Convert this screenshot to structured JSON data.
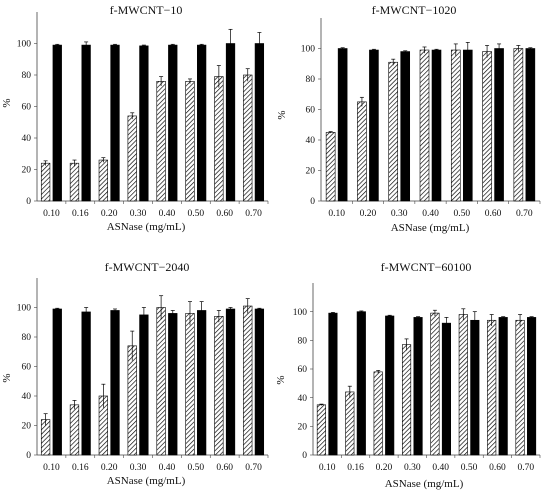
{
  "figure": {
    "colors": {
      "solid_series": "#000000",
      "hatched_series": "hatched"
    }
  },
  "chart_data": [
    {
      "type": "bar",
      "title": "f-MWCNT−10",
      "xlabel": "ASNase (mg/mL)",
      "ylabel": "%",
      "ylim": [
        0,
        120
      ],
      "yticks": [
        "0",
        "20",
        "40",
        "60",
        "80",
        "100"
      ],
      "categories": [
        "0.10",
        "0.16",
        "0.20",
        "0.30",
        "0.40",
        "0.50",
        "0.60",
        "0.70"
      ],
      "grid": false,
      "series": [
        {
          "style": "hatched",
          "values": [
            24,
            24,
            26,
            54,
            76,
            76,
            79,
            80
          ],
          "errors": [
            1.5,
            2,
            1.5,
            2,
            3,
            1.5,
            7,
            4
          ]
        },
        {
          "style": "solid",
          "values": [
            99,
            99,
            99,
            98.5,
            99,
            99,
            100,
            100
          ],
          "errors": [
            0.5,
            2,
            0.5,
            0.5,
            0.5,
            0.5,
            9,
            7
          ]
        }
      ]
    },
    {
      "type": "bar",
      "title": "f-MWCNT−1020",
      "xlabel": "ASNase (mg/mL)",
      "ylabel": "%",
      "ylim": [
        0,
        120
      ],
      "yticks": [
        "0",
        "20",
        "40",
        "60",
        "80",
        "100"
      ],
      "categories": [
        "0.10",
        "0.20",
        "0.30",
        "0.40",
        "0.50",
        "0.60",
        "0.70"
      ],
      "grid": false,
      "series": [
        {
          "style": "hatched",
          "values": [
            45,
            65,
            91,
            99,
            99,
            98,
            100
          ],
          "errors": [
            0.5,
            3,
            2,
            2,
            4,
            4,
            2
          ]
        },
        {
          "style": "solid",
          "values": [
            100,
            99,
            98,
            99,
            99,
            100,
            100
          ],
          "errors": [
            0.5,
            0.5,
            0.5,
            0.5,
            5,
            3,
            0.5
          ]
        }
      ]
    },
    {
      "type": "bar",
      "title": "f-MWCNT−2040",
      "xlabel": "ASNase (mg/mL)",
      "ylabel": "%",
      "ylim": [
        0,
        120
      ],
      "yticks": [
        "0",
        "20",
        "40",
        "60",
        "80",
        "100"
      ],
      "categories": [
        "0.10",
        "0.16",
        "0.20",
        "0.30",
        "0.40",
        "0.50",
        "0.60",
        "0.70"
      ],
      "grid": false,
      "series": [
        {
          "style": "hatched",
          "values": [
            24,
            34,
            40,
            74,
            100,
            96,
            94,
            101
          ],
          "errors": [
            4,
            3,
            8,
            10,
            8,
            8,
            4,
            5
          ]
        },
        {
          "style": "solid",
          "values": [
            99,
            97,
            98,
            95,
            96,
            98,
            99,
            99
          ],
          "errors": [
            0.5,
            3,
            1,
            5,
            2,
            6,
            1,
            0.5
          ]
        }
      ]
    },
    {
      "type": "bar",
      "title": "f-MWCNT−60100",
      "xlabel": "ASNase (mg/mL)",
      "ylabel": "%",
      "ylim": [
        0,
        120
      ],
      "yticks": [
        "0",
        "20",
        "40",
        "60",
        "80",
        "100"
      ],
      "categories": [
        "0.10",
        "0.16",
        "0.20",
        "0.30",
        "0.40",
        "0.50",
        "0.60",
        "0.70"
      ],
      "grid": false,
      "series": [
        {
          "style": "hatched",
          "values": [
            35,
            44,
            58,
            77,
            99,
            98,
            94,
            94
          ],
          "errors": [
            0.5,
            4,
            1,
            4,
            2,
            4,
            4,
            4
          ]
        },
        {
          "style": "solid",
          "values": [
            99,
            100,
            97,
            96,
            92,
            94,
            96,
            96
          ],
          "errors": [
            0.5,
            0.5,
            0.5,
            0.5,
            4,
            6,
            0.5,
            0.5
          ]
        }
      ]
    }
  ]
}
